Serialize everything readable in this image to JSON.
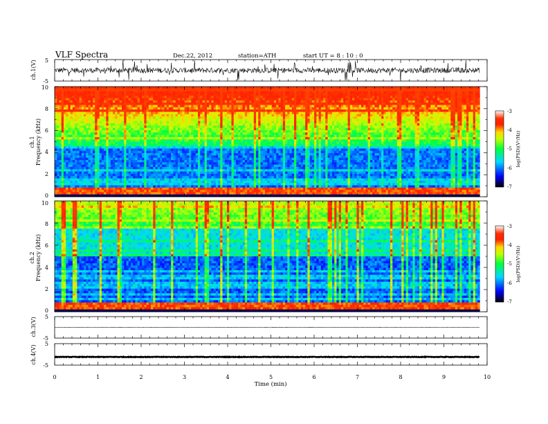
{
  "header": {
    "title": "VLF Spectra",
    "date": "Dec.22, 2012",
    "station": "station=ATH",
    "start": "start  UT =  8 : 10 : 0"
  },
  "chart_data": [
    {
      "type": "line",
      "panel": "ch1-waveform",
      "ylabel": "ch.1(V)",
      "yticks": [
        "5",
        "-5"
      ],
      "ylim": [
        -5,
        5
      ],
      "xlim": [
        0,
        10
      ],
      "data_end_min": 9.83,
      "baseline_v": 0.0,
      "amplitude_v": 2.5,
      "color": "#000000"
    },
    {
      "type": "heatmap",
      "panel": "ch1-spectrogram",
      "ylabel_top": "ch.1",
      "ylabel": "Frequency  (kHz)",
      "yticks": [
        "0",
        "2",
        "4",
        "6",
        "8",
        "10"
      ],
      "ylim": [
        0,
        10
      ],
      "xlim": [
        0,
        10
      ],
      "data_end_min": 9.83,
      "colorbar": {
        "label": "log(PSD)(V²/Hz)",
        "ticks": [
          "-3",
          "-4",
          "-5",
          "-6",
          "-7"
        ],
        "range": [
          -7,
          -3
        ]
      }
    },
    {
      "type": "heatmap",
      "panel": "ch2-spectrogram",
      "ylabel_top": "ch.2",
      "ylabel": "Frequency  (kHz)",
      "yticks": [
        "0",
        "2",
        "4",
        "6",
        "8",
        "10"
      ],
      "ylim": [
        0,
        10
      ],
      "xlim": [
        0,
        10
      ],
      "data_end_min": 9.83,
      "colorbar": {
        "label": "log(PSD)(V²/Hz)",
        "ticks": [
          "-3",
          "-4",
          "-5",
          "-6",
          "-7"
        ],
        "range": [
          -7,
          -3
        ]
      }
    },
    {
      "type": "line",
      "panel": "ch3-waveform",
      "ylabel": "ch.3(V)",
      "yticks": [
        "5",
        "-5"
      ],
      "ylim": [
        -5,
        5
      ],
      "xlim": [
        0,
        10
      ],
      "data_end_min": 9.83,
      "baseline_v": 0.0,
      "amplitude_v": 0.05,
      "color": "#000000"
    },
    {
      "type": "line",
      "panel": "ch4-waveform",
      "ylabel": "ch.4(V)",
      "yticks": [
        "5",
        "-5"
      ],
      "ylim": [
        -5,
        5
      ],
      "xlim": [
        0,
        10
      ],
      "data_end_min": 9.83,
      "baseline_v": -1.2,
      "amplitude_v": 0.25,
      "color": "#000000"
    }
  ],
  "xaxis": {
    "label": "Time  (min)",
    "ticks": [
      "0",
      "1",
      "2",
      "3",
      "4",
      "5",
      "6",
      "7",
      "8",
      "9",
      "10"
    ]
  }
}
